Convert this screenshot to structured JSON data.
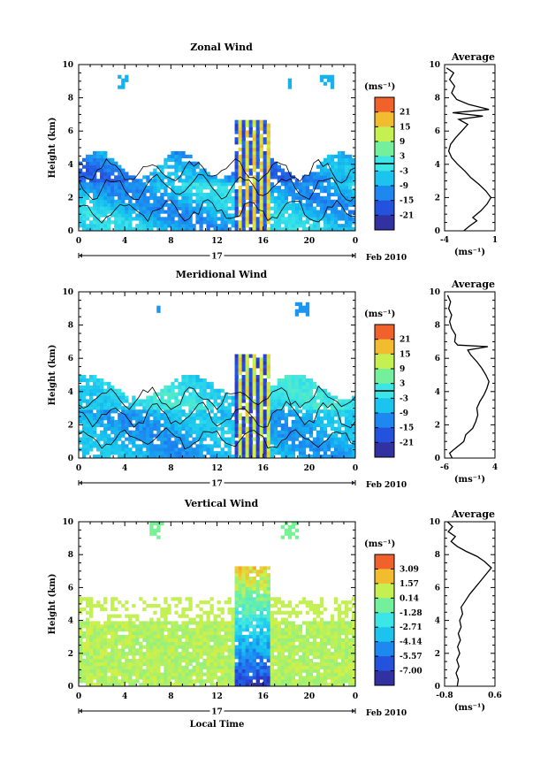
{
  "chart_data": [
    {
      "type": "heatmap",
      "title": "Zonal Wind",
      "ylabel": "Height (km)",
      "xlabel": "",
      "xlim": [
        0,
        24
      ],
      "ylim": [
        0,
        10
      ],
      "x_ticks": [
        "0",
        "4",
        "8",
        "12",
        "16",
        "20",
        "0"
      ],
      "y_ticks": [
        "0",
        "2",
        "4",
        "6",
        "8",
        "10"
      ],
      "date_label": "17",
      "date_suffix": "Feb 2010",
      "colorbar": {
        "unit": "(ms⁻¹)",
        "min": -24,
        "max": 24,
        "ticks": [
          "21",
          "15",
          "9",
          "3",
          "-3",
          "-9",
          "-15",
          "-21"
        ],
        "contour_level": 0
      },
      "average_panel": {
        "title": "Average",
        "xlabel": "(ms⁻¹)",
        "xlim": [
          -4,
          1
        ],
        "x_ticks": [
          "-4",
          "1"
        ],
        "y_ticks": [
          "0",
          "2",
          "4",
          "6",
          "8",
          "10"
        ],
        "profile": [
          [
            -2.1,
            0.0
          ],
          [
            -1.5,
            0.3
          ],
          [
            -0.8,
            0.6
          ],
          [
            -1.2,
            0.8
          ],
          [
            -0.4,
            1.2
          ],
          [
            0.2,
            1.6
          ],
          [
            0.6,
            2.0
          ],
          [
            0.1,
            2.4
          ],
          [
            -0.6,
            2.8
          ],
          [
            -1.4,
            3.2
          ],
          [
            -2.0,
            3.6
          ],
          [
            -2.7,
            4.0
          ],
          [
            -3.3,
            4.4
          ],
          [
            -3.6,
            4.8
          ],
          [
            -3.4,
            5.2
          ],
          [
            -2.9,
            5.6
          ],
          [
            -2.3,
            6.0
          ],
          [
            -1.7,
            6.4
          ],
          [
            -2.6,
            6.7
          ],
          [
            -0.2,
            6.9
          ],
          [
            -3.2,
            7.1
          ],
          [
            0.4,
            7.3
          ],
          [
            -1.6,
            7.6
          ],
          [
            -2.8,
            7.9
          ],
          [
            -3.3,
            8.3
          ],
          [
            -3.0,
            8.7
          ],
          [
            -3.5,
            9.1
          ],
          [
            -3.1,
            9.5
          ],
          [
            -3.8,
            9.8
          ]
        ]
      }
    },
    {
      "type": "heatmap",
      "title": "Meridional Wind",
      "ylabel": "Height (km)",
      "xlabel": "",
      "xlim": [
        0,
        24
      ],
      "ylim": [
        0,
        10
      ],
      "x_ticks": [
        "0",
        "4",
        "8",
        "12",
        "16",
        "20",
        "0"
      ],
      "y_ticks": [
        "0",
        "2",
        "4",
        "6",
        "8",
        "10"
      ],
      "date_label": "17",
      "date_suffix": "Feb 2010",
      "colorbar": {
        "unit": "(ms⁻¹)",
        "min": -24,
        "max": 24,
        "ticks": [
          "21",
          "15",
          "9",
          "3",
          "-3",
          "-9",
          "-15",
          "-21"
        ],
        "contour_level": 0
      },
      "average_panel": {
        "title": "Average",
        "xlabel": "(ms⁻¹)",
        "xlim": [
          -6,
          4
        ],
        "x_ticks": [
          "-6",
          "4"
        ],
        "y_ticks": [
          "0",
          "2",
          "4",
          "6",
          "8",
          "10"
        ],
        "profile": [
          [
            -4.5,
            0.0
          ],
          [
            -5.0,
            0.3
          ],
          [
            -3.8,
            0.6
          ],
          [
            -2.2,
            1.0
          ],
          [
            -1.8,
            1.4
          ],
          [
            -0.4,
            1.8
          ],
          [
            0.2,
            2.2
          ],
          [
            0.6,
            2.6
          ],
          [
            0.4,
            3.0
          ],
          [
            1.0,
            3.4
          ],
          [
            1.8,
            3.8
          ],
          [
            2.4,
            4.2
          ],
          [
            2.8,
            4.6
          ],
          [
            2.2,
            5.0
          ],
          [
            1.4,
            5.4
          ],
          [
            0.4,
            5.8
          ],
          [
            -0.8,
            6.2
          ],
          [
            -1.4,
            6.5
          ],
          [
            2.6,
            6.7
          ],
          [
            -3.4,
            6.8
          ],
          [
            -4.0,
            7.0
          ],
          [
            -3.8,
            7.4
          ],
          [
            -4.6,
            7.8
          ],
          [
            -5.0,
            8.2
          ],
          [
            -4.6,
            8.6
          ],
          [
            -5.2,
            9.0
          ],
          [
            -4.8,
            9.4
          ],
          [
            -5.4,
            9.8
          ]
        ]
      }
    },
    {
      "type": "heatmap",
      "title": "Vertical Wind",
      "ylabel": "Height (km)",
      "xlabel": "Local Time",
      "xlim": [
        0,
        24
      ],
      "ylim": [
        0,
        10
      ],
      "x_ticks": [
        "0",
        "4",
        "8",
        "12",
        "16",
        "20",
        "0"
      ],
      "y_ticks": [
        "0",
        "2",
        "4",
        "6",
        "8",
        "10"
      ],
      "date_label": "17",
      "date_suffix": "Feb 2010",
      "colorbar": {
        "unit": "(ms⁻¹)",
        "min": -8.5,
        "max": 4.5,
        "ticks": [
          "3.09",
          "1.57",
          "0.14",
          "-1.28",
          "-2.71",
          "-4.14",
          "-5.57",
          "-7.00"
        ]
      },
      "average_panel": {
        "title": "Average",
        "xlabel": "(ms⁻¹)",
        "xlim": [
          -0.8,
          0.6
        ],
        "x_ticks": [
          "-0.8",
          "0.6"
        ],
        "y_ticks": [
          "0",
          "2",
          "4",
          "6",
          "8",
          "10"
        ],
        "profile": [
          [
            -0.45,
            0.0
          ],
          [
            -0.42,
            0.4
          ],
          [
            -0.48,
            0.8
          ],
          [
            -0.4,
            1.2
          ],
          [
            -0.46,
            1.6
          ],
          [
            -0.38,
            2.0
          ],
          [
            -0.44,
            2.4
          ],
          [
            -0.36,
            2.8
          ],
          [
            -0.42,
            3.2
          ],
          [
            -0.34,
            3.6
          ],
          [
            -0.38,
            4.0
          ],
          [
            -0.3,
            4.4
          ],
          [
            -0.34,
            4.8
          ],
          [
            -0.22,
            5.2
          ],
          [
            -0.1,
            5.6
          ],
          [
            0.05,
            6.0
          ],
          [
            0.2,
            6.4
          ],
          [
            0.35,
            6.8
          ],
          [
            0.5,
            7.2
          ],
          [
            0.3,
            7.6
          ],
          [
            0.1,
            7.9
          ],
          [
            -0.2,
            8.2
          ],
          [
            -0.45,
            8.5
          ],
          [
            -0.62,
            8.8
          ],
          [
            -0.5,
            9.1
          ],
          [
            -0.7,
            9.4
          ],
          [
            -0.58,
            9.7
          ],
          [
            -0.72,
            10.0
          ]
        ]
      }
    }
  ]
}
